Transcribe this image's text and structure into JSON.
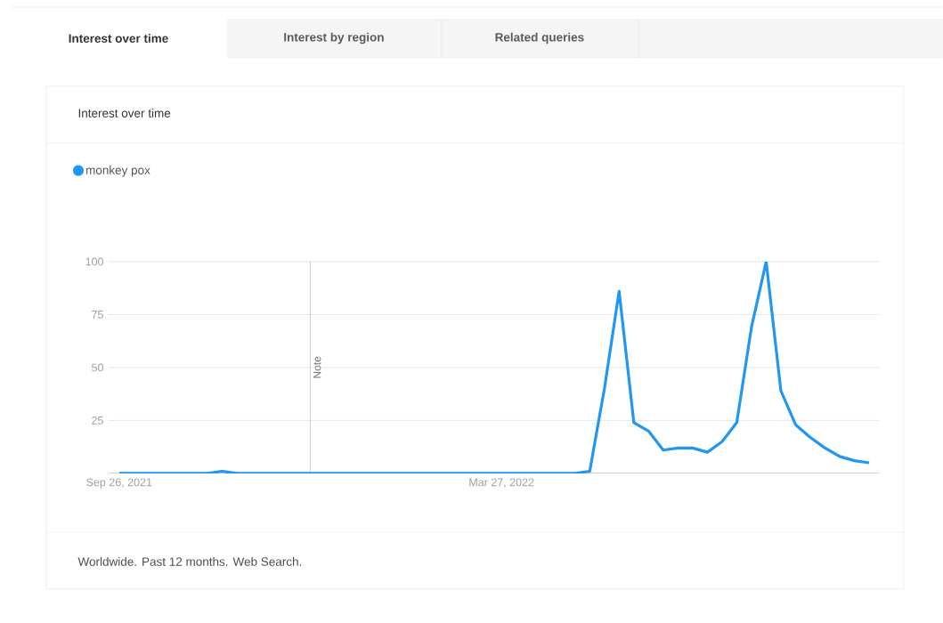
{
  "chart_data": {
    "type": "line",
    "title": "Interest over time",
    "annotations": [
      "Interest over time",
      "Interest by region",
      "Related queries",
      "Worldwide. Past 12 months. Web Search."
    ],
    "x": [
      "2021-09-26",
      "2021-10-03",
      "2021-10-10",
      "2021-10-17",
      "2021-10-24",
      "2021-10-31",
      "2021-11-07",
      "2021-11-14",
      "2021-11-21",
      "2021-11-28",
      "2021-12-05",
      "2021-12-12",
      "2021-12-19",
      "2021-12-26",
      "2022-01-02",
      "2022-01-09",
      "2022-01-16",
      "2022-01-23",
      "2022-01-30",
      "2022-02-06",
      "2022-02-13",
      "2022-02-20",
      "2022-02-27",
      "2022-03-06",
      "2022-03-13",
      "2022-03-20",
      "2022-03-27",
      "2022-04-03",
      "2022-04-10",
      "2022-04-17",
      "2022-04-24",
      "2022-05-01",
      "2022-05-08",
      "2022-05-15",
      "2022-05-22",
      "2022-05-29",
      "2022-06-05",
      "2022-06-12",
      "2022-06-19",
      "2022-06-26",
      "2022-07-03",
      "2022-07-10",
      "2022-07-17",
      "2022-07-24",
      "2022-07-31",
      "2022-08-07",
      "2022-08-14",
      "2022-08-21",
      "2022-08-28",
      "2022-09-04",
      "2022-09-11",
      "2022-09-18"
    ],
    "series": [
      {
        "name": "monkey pox",
        "color": "#2196f3",
        "values": [
          0,
          0,
          0,
          0,
          0,
          0,
          0,
          1,
          0,
          0,
          0,
          0,
          0,
          0,
          0,
          0,
          0,
          0,
          0,
          0,
          0,
          0,
          0,
          0,
          0,
          0,
          0,
          0,
          0,
          0,
          0,
          0,
          1,
          40,
          86,
          24,
          20,
          11,
          12,
          12,
          10,
          15,
          24,
          69,
          100,
          39,
          23,
          17,
          12,
          8,
          6,
          5
        ]
      }
    ],
    "xlim": [
      "2021-09-21",
      "2022-09-23"
    ],
    "xticks": [
      {
        "value": "2021-09-26",
        "label": "Sep 26, 2021"
      },
      {
        "value": "2022-03-27",
        "label": "Mar 27, 2022"
      }
    ],
    "ylim": [
      0,
      100
    ],
    "yticks": [
      25,
      50,
      75,
      100
    ],
    "ref_lines": [
      {
        "axis": "x",
        "value": "2021-12-26",
        "label": "Note",
        "color": "#cccccc"
      }
    ],
    "grid": "y",
    "legend": "top left",
    "marker": "none",
    "line_style": "solid"
  }
}
